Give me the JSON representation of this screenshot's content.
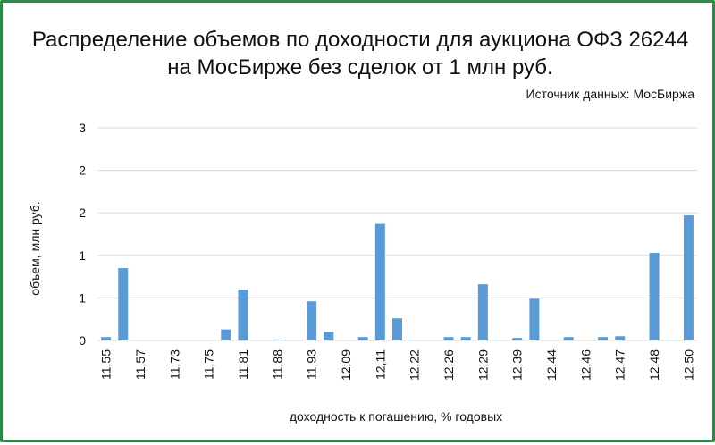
{
  "chart_data": {
    "type": "bar",
    "title_line1": "Распределение объемов по доходности для аукциона ОФЗ 26244",
    "title_line2": "на МосБирже без сделок от 1 млн руб.",
    "source": "Источник данных: МосБиржа",
    "xlabel": "доходность к погашению, % годовых",
    "ylabel": "объем, млн руб.",
    "ytick_values": [
      0,
      0.5,
      1,
      1.5,
      2,
      2.5
    ],
    "ytick_labels": [
      "0",
      "1",
      "1",
      "2",
      "2",
      "3"
    ],
    "ylim": [
      0,
      2.5
    ],
    "grid": true,
    "bar_color": "#5b9bd5",
    "x_labels": [
      "11,55",
      "11,57",
      "11,73",
      "11,75",
      "11,81",
      "11,88",
      "11,93",
      "12,09",
      "12,11",
      "12,22",
      "12,26",
      "12,29",
      "12,39",
      "12,44",
      "12,46",
      "12,47",
      "12,48",
      "12,50"
    ],
    "values": [
      0.04,
      0.85,
      0,
      0,
      0,
      0,
      0,
      0.13,
      0.6,
      0,
      0.01,
      0,
      0.46,
      0.1,
      0,
      0.04,
      1.37,
      0.26,
      0,
      0,
      0.04,
      0.04,
      0.66,
      0,
      0.03,
      0.49,
      0,
      0.04,
      0,
      0.04,
      0.05,
      0,
      1.03,
      0,
      1.47
    ]
  }
}
